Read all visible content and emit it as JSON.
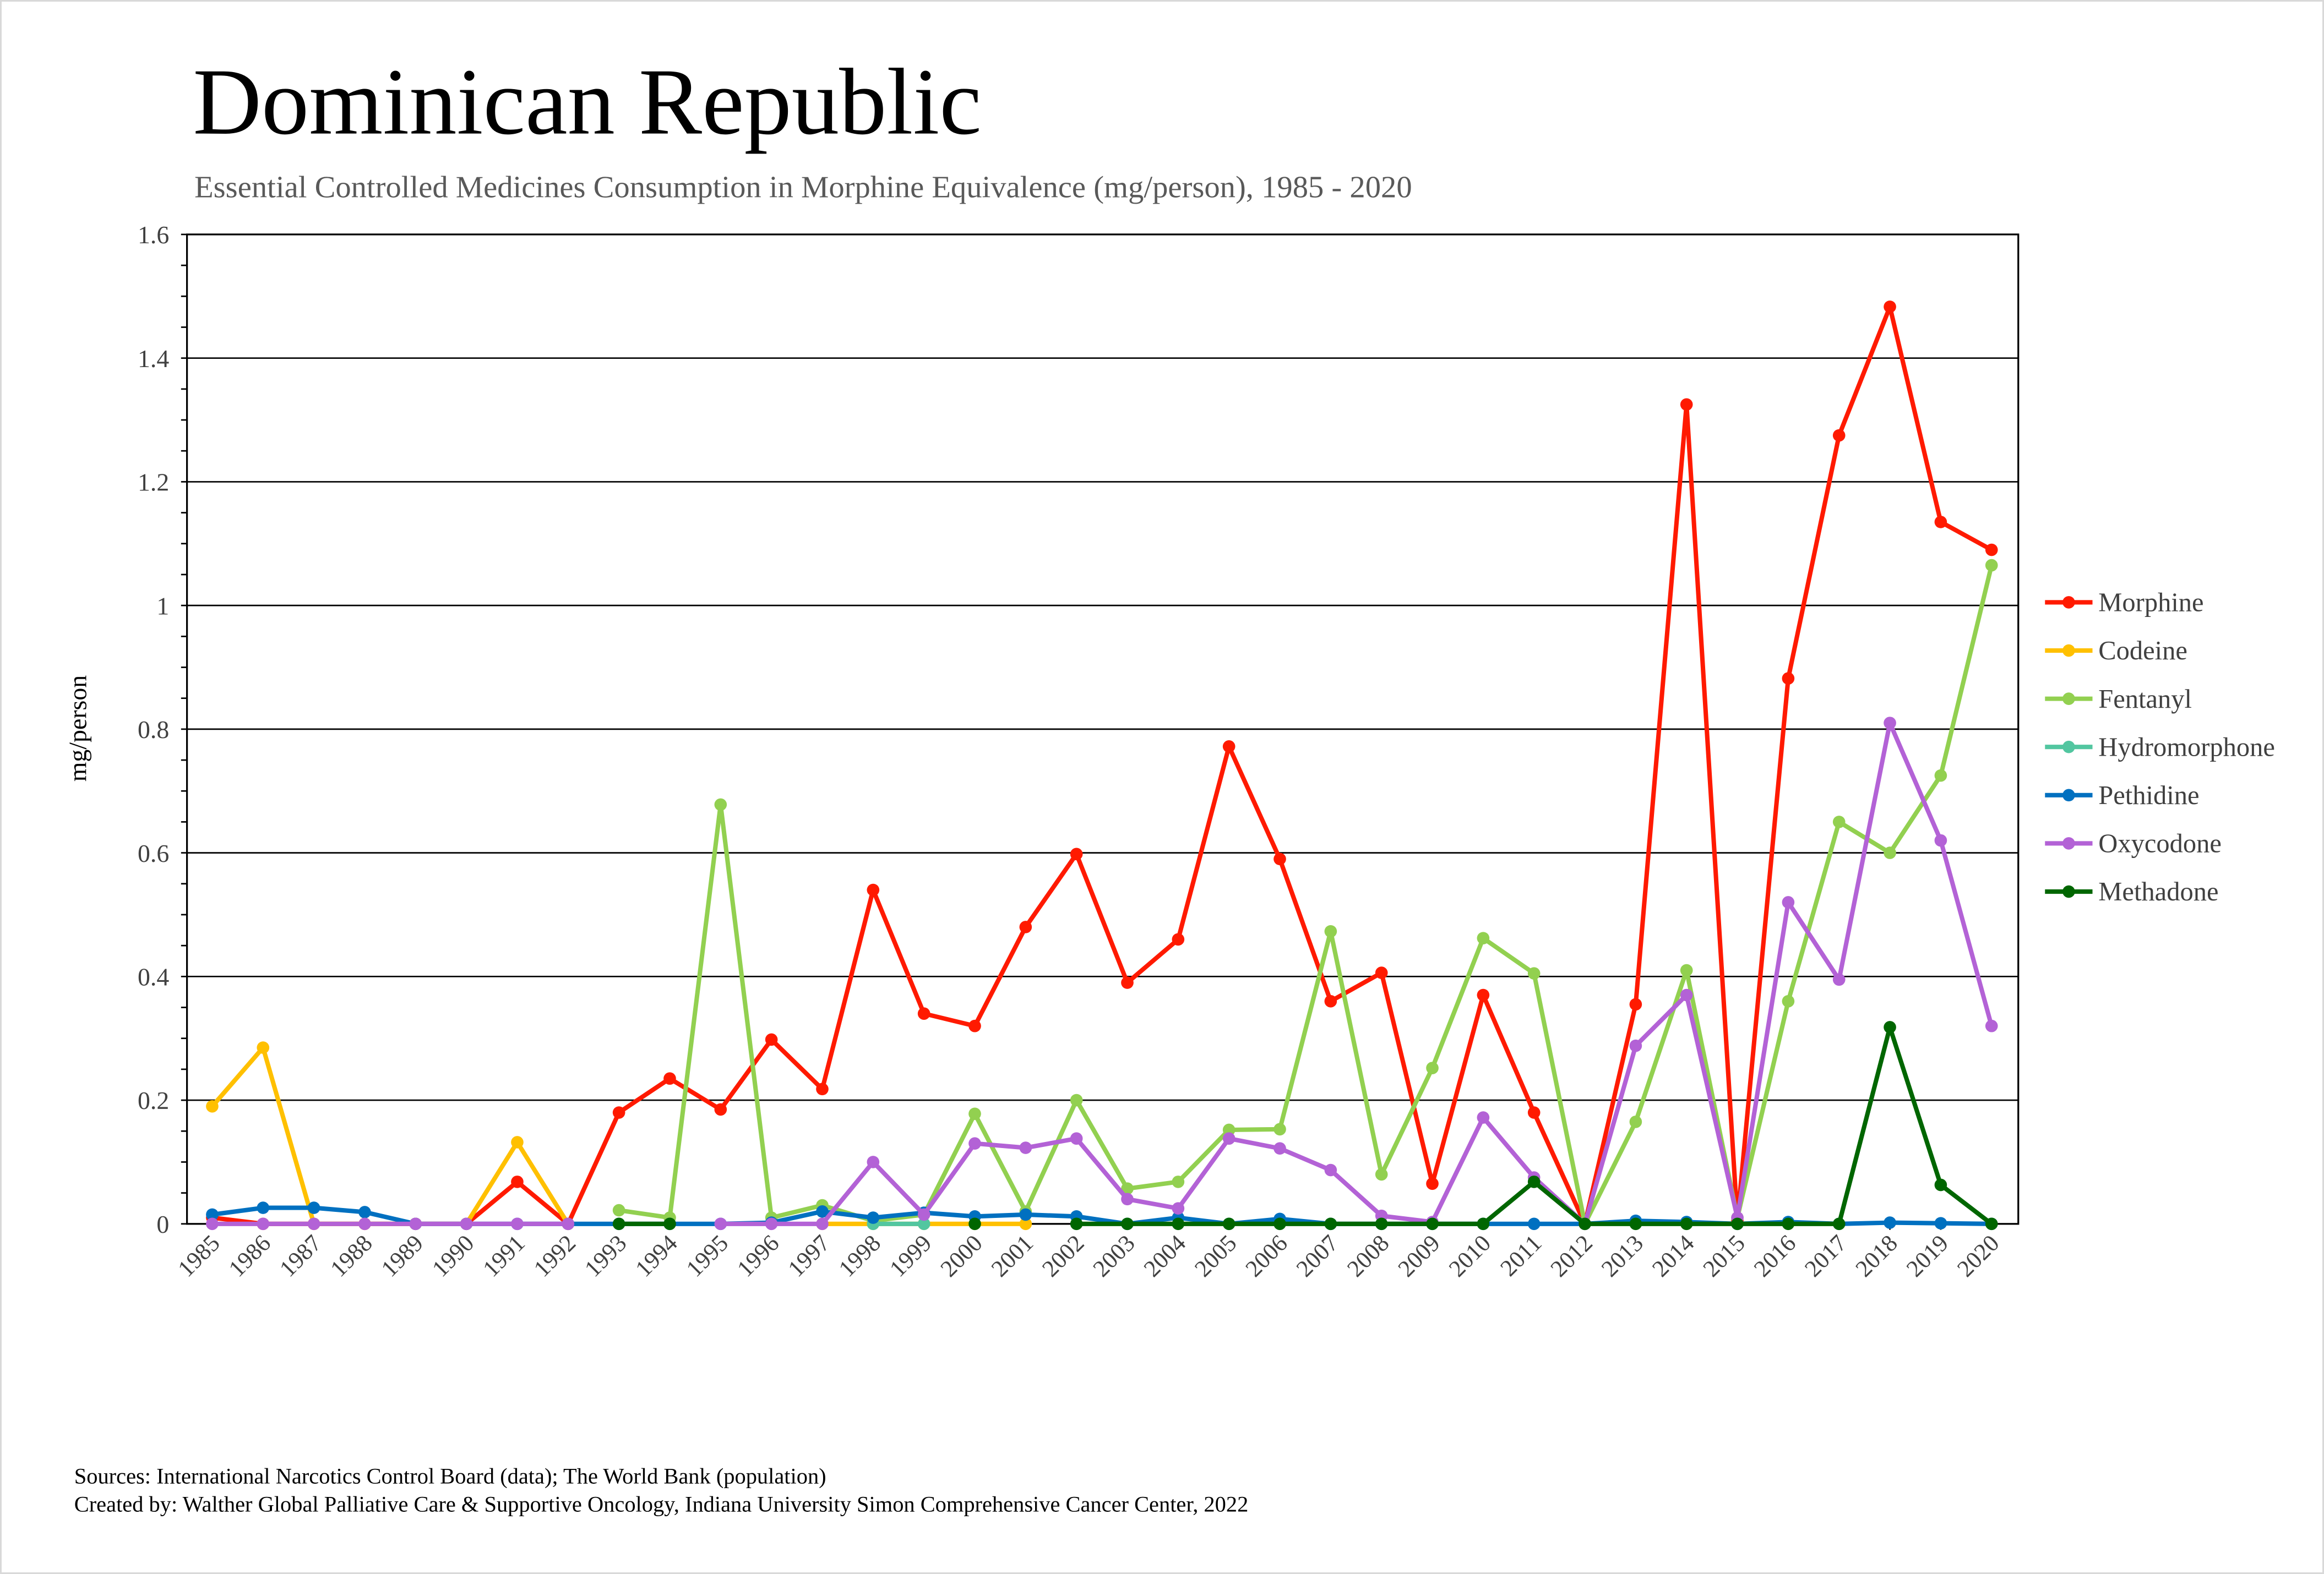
{
  "chart_data": {
    "type": "line",
    "title": "Dominican Republic",
    "subtitle": "Essential Controlled Medicines Consumption in Morphine Equivalence (mg/person), 1985 - 2020",
    "xlabel": "",
    "ylabel": "mg/person",
    "ylim": [
      0,
      1.6
    ],
    "yticks": [
      "0",
      "0.2",
      "0.4",
      "0.6",
      "0.8",
      "1",
      "1.2",
      "1.4",
      "1.6"
    ],
    "grid": true,
    "legend_position": "right",
    "x": [
      "1985",
      "1986",
      "1987",
      "1988",
      "1989",
      "1990",
      "1991",
      "1992",
      "1993",
      "1994",
      "1995",
      "1996",
      "1997",
      "1998",
      "1999",
      "2000",
      "2001",
      "2002",
      "2003",
      "2004",
      "2005",
      "2006",
      "2007",
      "2008",
      "2009",
      "2010",
      "2011",
      "2012",
      "2013",
      "2014",
      "2015",
      "2016",
      "2017",
      "2018",
      "2019",
      "2020"
    ],
    "series": [
      {
        "name": "Morphine",
        "color": "#ff1a00",
        "values": [
          0.01,
          0,
          0,
          0,
          0,
          0,
          0.068,
          0,
          0.18,
          0.235,
          0.185,
          0.298,
          0.218,
          0.54,
          0.34,
          0.32,
          0.48,
          0.598,
          0.39,
          0.46,
          0.772,
          0.59,
          0.36,
          0.406,
          0.065,
          0.37,
          0.18,
          0,
          0.355,
          1.325,
          0.005,
          0.882,
          1.275,
          1.483,
          1.135,
          1.09
        ]
      },
      {
        "name": "Codeine",
        "color": "#ffc000",
        "values": [
          0.19,
          0.285,
          0,
          0,
          0,
          0,
          0.132,
          0,
          null,
          null,
          null,
          null,
          0,
          0,
          0,
          0,
          0,
          null,
          null,
          null,
          null,
          null,
          null,
          null,
          null,
          null,
          null,
          null,
          null,
          null,
          null,
          null,
          null,
          null,
          null,
          null
        ]
      },
      {
        "name": "Fentanyl",
        "color": "#92d050",
        "values": [
          null,
          null,
          null,
          null,
          null,
          null,
          null,
          null,
          0.022,
          0.01,
          0.678,
          0.01,
          0.03,
          0.005,
          0.015,
          0.178,
          0.02,
          0.2,
          0.057,
          0.068,
          0.152,
          0.153,
          0.473,
          0.08,
          0.252,
          0.462,
          0.405,
          0,
          0.165,
          0.41,
          0.01,
          0.36,
          0.65,
          0.6,
          0.725,
          1.065
        ]
      },
      {
        "name": "Hydromorphone",
        "color": "#52c6a0",
        "values": [
          null,
          null,
          null,
          null,
          null,
          null,
          null,
          null,
          null,
          null,
          null,
          null,
          null,
          0,
          0,
          null,
          null,
          null,
          null,
          null,
          null,
          null,
          null,
          null,
          null,
          null,
          null,
          null,
          null,
          null,
          null,
          null,
          null,
          null,
          null,
          null
        ]
      },
      {
        "name": "Pethidine",
        "color": "#0070c0",
        "values": [
          0.015,
          0.026,
          0.026,
          0.019,
          0,
          0,
          0,
          0,
          0,
          0,
          0,
          0.002,
          0.02,
          0.01,
          0.018,
          0.012,
          0.015,
          0.012,
          0,
          0.01,
          0,
          0.008,
          0,
          0,
          0,
          0,
          0,
          0,
          0.005,
          0.003,
          0,
          0.003,
          0,
          0.002,
          0.001,
          0
        ]
      },
      {
        "name": "Oxycodone",
        "color": "#b362d6",
        "values": [
          0,
          0,
          0,
          0,
          0,
          0,
          0,
          0,
          null,
          null,
          0,
          0,
          0,
          0.1,
          0.015,
          0.13,
          0.123,
          0.138,
          0.04,
          0.025,
          0.138,
          0.122,
          0.087,
          0.013,
          0.003,
          0.172,
          0.075,
          0,
          0.288,
          0.37,
          0.01,
          0.52,
          0.395,
          0.81,
          0.62,
          0.32
        ]
      },
      {
        "name": "Methadone",
        "color": "#006600",
        "values": [
          null,
          null,
          null,
          null,
          null,
          null,
          null,
          null,
          0,
          0,
          null,
          null,
          null,
          null,
          null,
          0,
          null,
          0,
          0,
          0,
          0,
          0,
          0,
          0,
          0,
          0,
          0.068,
          0,
          0,
          0,
          0,
          0,
          0,
          0.318,
          0.063,
          0
        ]
      }
    ]
  },
  "footer": {
    "sources": "Sources: International Narcotics Control Board (data); The World Bank (population)",
    "created_by": "Created by: Walther Global Palliative Care & Supportive Oncology, Indiana University Simon Comprehensive Cancer Center, 2022"
  }
}
